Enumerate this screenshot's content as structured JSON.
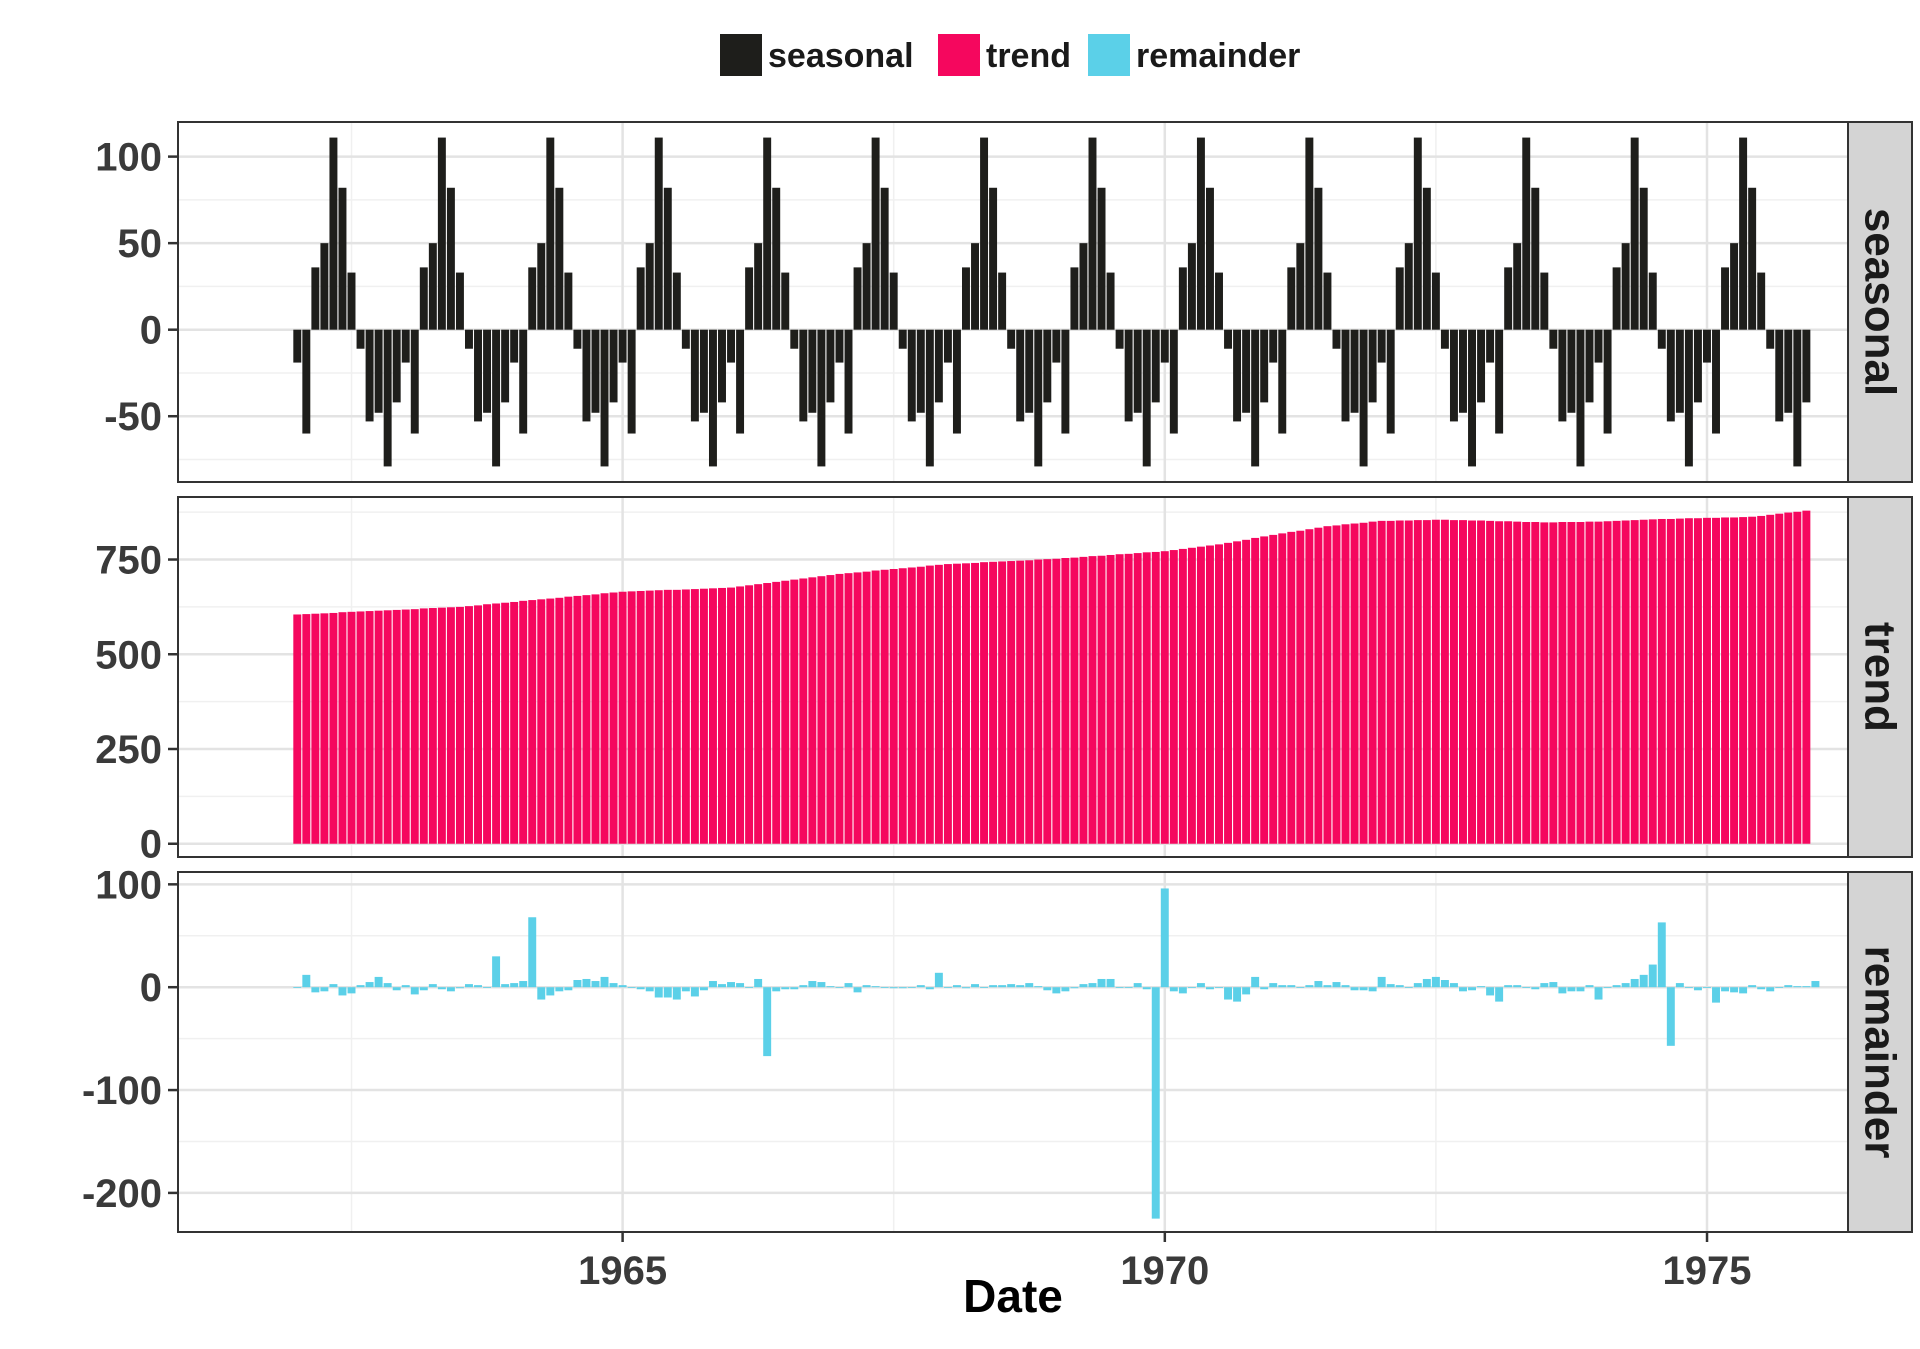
{
  "chart_data": {
    "type": "bar",
    "layout": "faceted",
    "xlabel": "Date",
    "x_range": [
      1960.9,
      1976.3
    ],
    "x_ticks": [
      1965,
      1970,
      1975
    ],
    "x_tick_labels": [
      "1965",
      "1970",
      "1975"
    ],
    "start": 1962.0,
    "step": 0.08333,
    "legend": {
      "position": "top",
      "entries": [
        {
          "label": "seasonal",
          "color": "#1e1e1b"
        },
        {
          "label": "trend",
          "color": "#f5075e"
        },
        {
          "label": "remainder",
          "color": "#5bd0e8"
        }
      ]
    },
    "panels": [
      {
        "strip": "seasonal",
        "color": "#1e1e1b",
        "ylim": [
          -88,
          120
        ],
        "y_ticks": [
          -50,
          0,
          50,
          100
        ],
        "y_tick_labels": [
          "-50",
          "0",
          "50",
          "100"
        ],
        "season_pattern": [
          -19,
          -60,
          36,
          50,
          111,
          82,
          33,
          -11,
          -53,
          -48,
          -79,
          -42
        ],
        "cycles": 14
      },
      {
        "strip": "trend",
        "color": "#f5075e",
        "ylim": [
          -35,
          915
        ],
        "y_ticks": [
          0,
          250,
          500,
          750
        ],
        "y_tick_labels": [
          "0",
          "250",
          "500",
          "750"
        ],
        "keypoints": [
          [
            1962.0,
            605
          ],
          [
            1963.5,
            625
          ],
          [
            1965.0,
            665
          ],
          [
            1966.0,
            676
          ],
          [
            1967.0,
            712
          ],
          [
            1968.0,
            738
          ],
          [
            1969.0,
            752
          ],
          [
            1970.0,
            772
          ],
          [
            1970.5,
            790
          ],
          [
            1971.0,
            815
          ],
          [
            1971.5,
            838
          ],
          [
            1972.0,
            852
          ],
          [
            1972.5,
            855
          ],
          [
            1973.0,
            852
          ],
          [
            1973.5,
            848
          ],
          [
            1974.0,
            850
          ],
          [
            1974.5,
            856
          ],
          [
            1975.0,
            860
          ],
          [
            1975.4,
            862
          ],
          [
            1976.0,
            882
          ]
        ]
      },
      {
        "strip": "remainder",
        "color": "#5bd0e8",
        "ylim": [
          -238,
          112
        ],
        "y_ticks": [
          -200,
          -100,
          0,
          100
        ],
        "y_tick_labels": [
          "-200",
          "-100",
          "0",
          "100"
        ],
        "values": [
          0,
          12,
          -5,
          -4,
          3,
          -8,
          -6,
          2,
          5,
          10,
          4,
          -3,
          2,
          -7,
          -3,
          3,
          -2,
          -4,
          -1,
          3,
          2,
          0,
          30,
          3,
          4,
          6,
          68,
          -12,
          -8,
          -4,
          -3,
          7,
          8,
          6,
          10,
          4,
          2,
          0,
          -2,
          -4,
          -10,
          -10,
          -12,
          -4,
          -9,
          -3,
          6,
          3,
          5,
          4,
          0,
          8,
          -67,
          -4,
          -2,
          -2,
          2,
          6,
          5,
          1,
          0,
          4,
          -5,
          2,
          1,
          0,
          -1,
          -1,
          0,
          2,
          -2,
          14,
          0,
          2,
          -1,
          3,
          0,
          2,
          2,
          3,
          2,
          4,
          1,
          -3,
          -6,
          -4,
          -1,
          3,
          4,
          8,
          8,
          0,
          0,
          4,
          -2,
          -225,
          96,
          -4,
          -6,
          0,
          4,
          -2,
          0,
          -12,
          -14,
          -7,
          10,
          -2,
          4,
          2,
          2,
          0,
          2,
          6,
          2,
          5,
          2,
          -3,
          -3,
          -4,
          10,
          3,
          2,
          0,
          4,
          8,
          10,
          7,
          4,
          -4,
          -3,
          1,
          -8,
          -14,
          2,
          2,
          0,
          -2,
          4,
          5,
          -6,
          -4,
          -4,
          2,
          -12,
          0,
          2,
          4,
          8,
          12,
          22,
          63,
          -57,
          4,
          0,
          -3,
          0,
          -15,
          -4,
          -5,
          -6,
          2,
          -2,
          -4,
          0,
          2,
          1,
          1,
          6
        ]
      }
    ]
  }
}
